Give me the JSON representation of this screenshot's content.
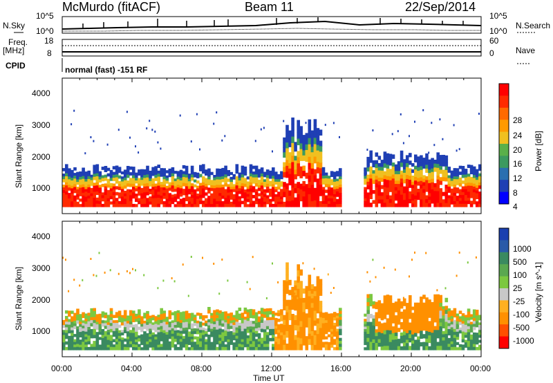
{
  "header": {
    "station": "McMurdo (fitACF)",
    "beam": "Beam 11",
    "date": "22/Sep/2014",
    "cpid_text": "normal (fast) -151 RF"
  },
  "top_panel": {
    "left_label_1": "N.Sky",
    "left_label_2a": "Freq.",
    "left_label_2b": "[MHz]",
    "left_label_3": "CPID",
    "right_label_1": "N.Search",
    "right_label_2": "Nave",
    "noise_ticks": [
      "10^5",
      "10^0"
    ],
    "noise_ticks_right": [
      "10^5",
      "10^0"
    ],
    "freq_ticks": [
      "18",
      "8"
    ],
    "nave_ticks": [
      "60",
      "0"
    ]
  },
  "colors": {
    "power_scale": [
      "#0000ff",
      "#1f3fb4",
      "#2a6fb0",
      "#3c9a60",
      "#5ab04a",
      "#f0c020",
      "#ff9a00",
      "#ff6a00",
      "#ff2a00",
      "#ff0000"
    ],
    "velocity_scale": [
      "#1a3fb0",
      "#2a5aa8",
      "#3a8a60",
      "#5aa850",
      "#7cc840",
      "#c8c8c8",
      "#ffb020",
      "#ff9000",
      "#ff5000",
      "#ff0000"
    ]
  },
  "chart_data": [
    {
      "type": "heatmap",
      "title": "",
      "xlabel": "",
      "ylabel": "Slant Range [km]",
      "xlim": [
        "00:00",
        "00:00"
      ],
      "ylim": [
        200,
        4500
      ],
      "yticks": [
        "1000",
        "2000",
        "3000",
        "4000"
      ],
      "colorbar": {
        "label": "Power [dB]",
        "ticks": [
          "4",
          "8",
          "12",
          "16",
          "20",
          "24",
          "28"
        ],
        "range": [
          0,
          32
        ]
      }
    },
    {
      "type": "heatmap",
      "title": "",
      "xlabel": "Time UT",
      "ylabel": "Slant Range [km]",
      "xticks": [
        "00:00",
        "04:00",
        "08:00",
        "12:00",
        "16:00",
        "20:00",
        "00:00"
      ],
      "xlim": [
        "00:00",
        "00:00"
      ],
      "ylim": [
        200,
        4500
      ],
      "yticks": [
        "1000",
        "2000",
        "3000",
        "4000"
      ],
      "colorbar": {
        "label": "Velocity [m s^-1]",
        "ticks": [
          "1000",
          "500",
          "100",
          "25",
          "-25",
          "-100",
          "-500",
          "-1000"
        ]
      }
    }
  ]
}
